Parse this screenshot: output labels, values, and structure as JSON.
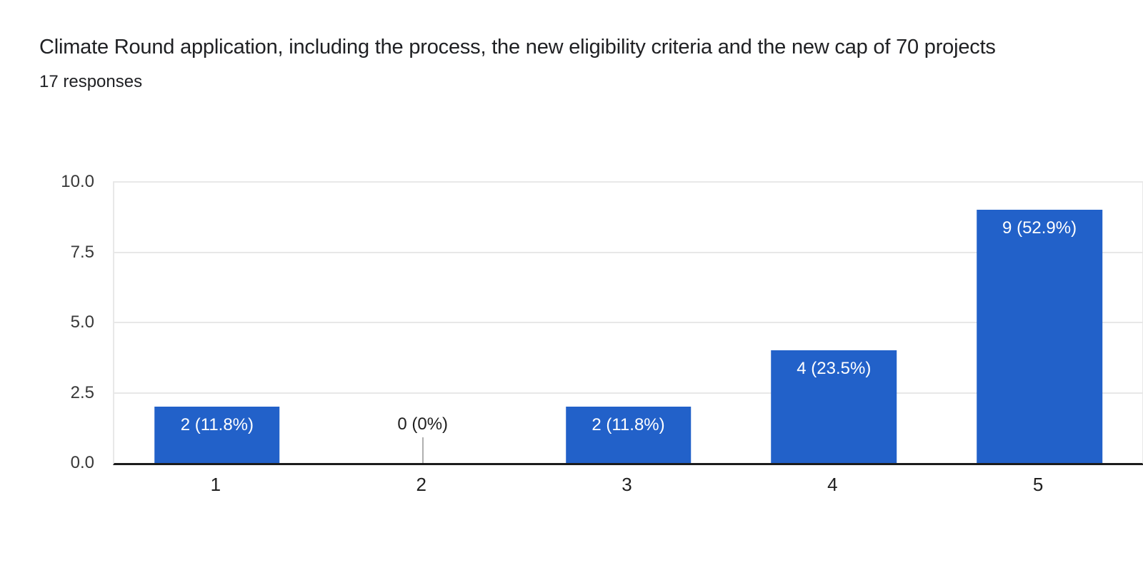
{
  "header": {
    "title": "Climate Round application, including the process, the new eligibility criteria and the new cap of 70 projects",
    "responses": "17 responses"
  },
  "chart_data": {
    "type": "bar",
    "title": "Climate Round application, including the process, the new eligibility criteria and the new cap of 70 projects",
    "subtitle": "17 responses",
    "total_responses": 17,
    "categories": [
      "1",
      "2",
      "3",
      "4",
      "5"
    ],
    "values": [
      2,
      0,
      2,
      4,
      9
    ],
    "bar_labels": [
      "2 (11.8%)",
      "0 (0%)",
      "2 (11.8%)",
      "4 (23.5%)",
      "9 (52.9%)"
    ],
    "xlabel": "",
    "ylabel": "",
    "ylim": [
      0,
      10
    ],
    "yticks": [
      0,
      2.5,
      5,
      7.5,
      10
    ],
    "ytick_labels": [
      "0.0",
      "2.5",
      "5.0",
      "7.5",
      "10.0"
    ],
    "grid": true,
    "legend_position": "none",
    "colors": {
      "bar": "#2261c9",
      "bar_label_text": "#ffffff",
      "gridline": "#e8e8e8",
      "axis_line": "#1c1c1c",
      "zero_leader": "#b0b0b0",
      "title_text": "#202124",
      "tick_text": "#383838"
    }
  }
}
